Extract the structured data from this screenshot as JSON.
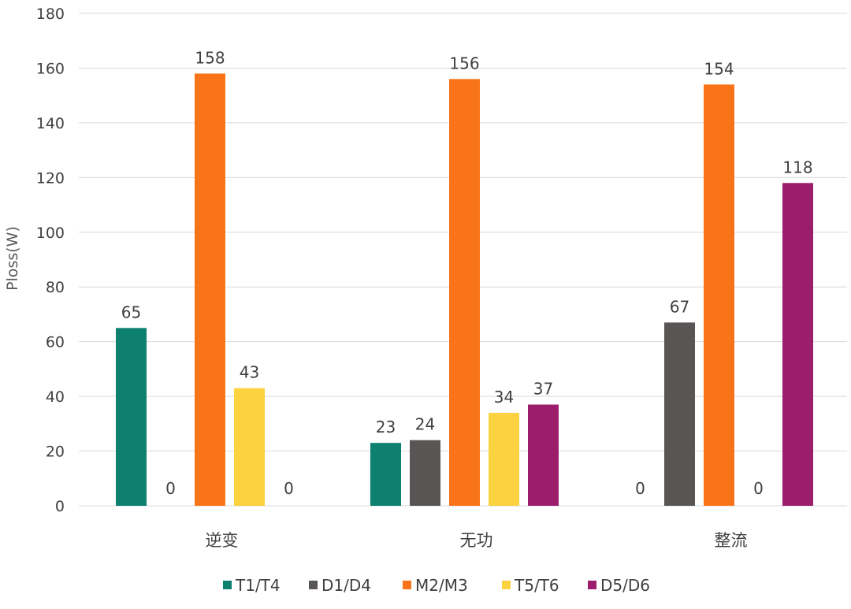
{
  "chart_data": {
    "type": "bar",
    "title": "",
    "xlabel": "",
    "ylabel": "Ploss(W)",
    "ylim": [
      0,
      180
    ],
    "yticks": [
      0,
      20,
      40,
      60,
      80,
      100,
      120,
      140,
      160,
      180
    ],
    "grid": true,
    "legend_position": "bottom",
    "categories": [
      "逆变",
      "无功",
      "整流"
    ],
    "series": [
      {
        "name": "T1/T4",
        "color": "#0e8070",
        "values": [
          65,
          23,
          0
        ]
      },
      {
        "name": "D1/D4",
        "color": "#595555",
        "values": [
          0,
          24,
          67
        ]
      },
      {
        "name": "M2/M3",
        "color": "#f97419",
        "values": [
          158,
          156,
          154
        ]
      },
      {
        "name": "T5/T6",
        "color": "#fbd240",
        "values": [
          43,
          34,
          0
        ]
      },
      {
        "name": "D5/D6",
        "color": "#9b1d6c",
        "values": [
          0,
          37,
          118
        ]
      }
    ]
  }
}
